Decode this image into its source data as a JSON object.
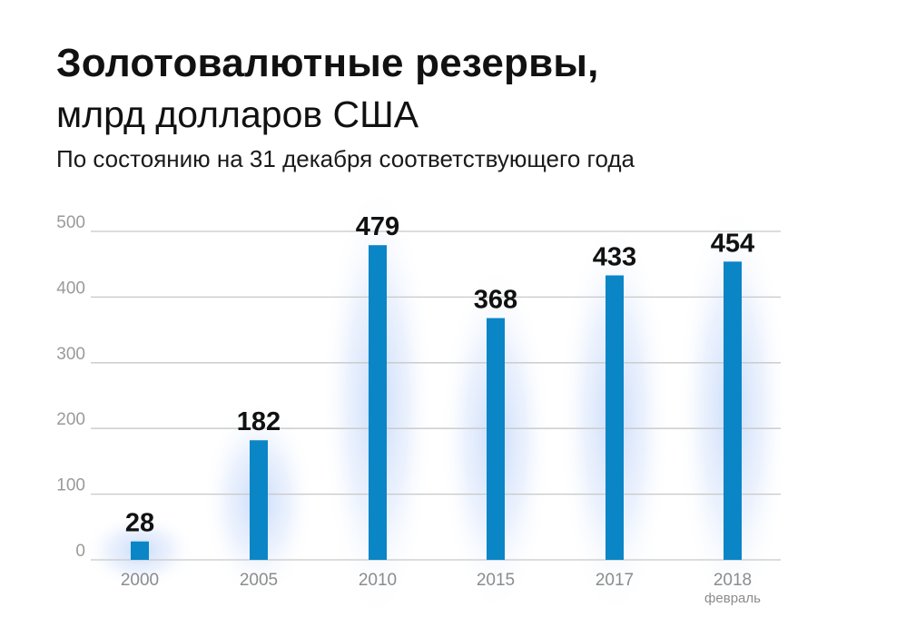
{
  "header": {
    "title": "Золотовалютные резервы,",
    "subtitle": "млрд долларов США",
    "note": "По состоянию на 31 декабря соответствующего года"
  },
  "colors": {
    "bar": "#0a85c6",
    "glow": "#cfe0fb",
    "grid": "#c8c8c8",
    "tick": "#9a9a9a"
  },
  "chart_data": {
    "type": "bar",
    "categories": [
      "2000",
      "2005",
      "2010",
      "2015",
      "2017",
      "2018"
    ],
    "category_sublabels": [
      "",
      "",
      "",
      "",
      "",
      "февраль"
    ],
    "values": [
      28,
      182,
      479,
      368,
      433,
      454
    ],
    "value_labels": [
      "28",
      "182",
      "479",
      "368",
      "433",
      "454"
    ],
    "title": "Золотовалютные резервы, млрд долларов США",
    "subtitle": "По состоянию на 31 декабря соответствующего года",
    "xlabel": "",
    "ylabel": "",
    "ylim": [
      0,
      500
    ],
    "yticks": [
      0,
      100,
      200,
      300,
      400,
      500
    ],
    "grid": true,
    "legend": "none"
  }
}
